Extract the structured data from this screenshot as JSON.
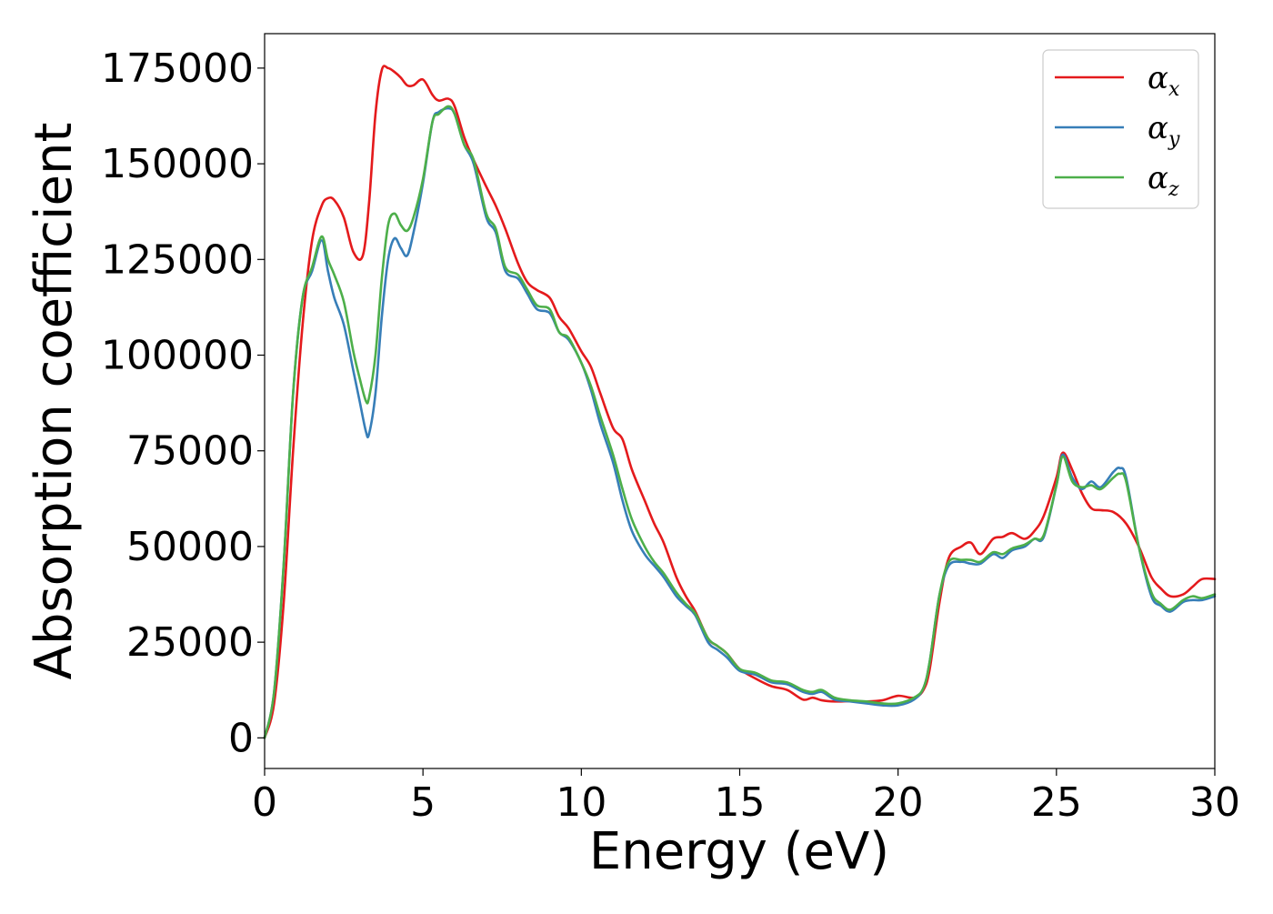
{
  "chart_data": {
    "type": "line",
    "xlabel": "Energy (eV)",
    "ylabel": "Absorption coefficient",
    "xlim": [
      0,
      30
    ],
    "ylim": [
      -8000,
      184000
    ],
    "xticks": [
      0,
      5,
      10,
      15,
      20,
      25,
      30
    ],
    "yticks": [
      0,
      25000,
      50000,
      75000,
      100000,
      125000,
      150000,
      175000
    ],
    "grid": false,
    "legend_position": "top-right",
    "series": [
      {
        "name": "α_x",
        "legend_base": "α",
        "legend_sub": "x",
        "color": "#e41a1c",
        "x": [
          0,
          0.3,
          0.6,
          0.9,
          1.2,
          1.5,
          1.8,
          2.0,
          2.2,
          2.5,
          2.8,
          3.1,
          3.3,
          3.5,
          3.7,
          3.9,
          4.1,
          4.3,
          4.5,
          4.7,
          5.0,
          5.3,
          5.5,
          5.8,
          6.0,
          6.3,
          6.6,
          7.0,
          7.3,
          7.6,
          8.0,
          8.3,
          8.6,
          9.0,
          9.3,
          9.6,
          10.0,
          10.3,
          10.6,
          11.0,
          11.3,
          11.6,
          12.0,
          12.3,
          12.6,
          13.0,
          13.3,
          13.6,
          14.0,
          14.3,
          14.6,
          15.0,
          15.5,
          16.0,
          16.5,
          17.0,
          17.3,
          17.6,
          18.0,
          18.5,
          19.0,
          19.5,
          20.0,
          20.5,
          20.8,
          21.0,
          21.3,
          21.6,
          22.0,
          22.3,
          22.6,
          23.0,
          23.3,
          23.6,
          24.0,
          24.3,
          24.6,
          25.0,
          25.2,
          25.5,
          25.8,
          26.1,
          26.4,
          26.8,
          27.2,
          27.6,
          28.0,
          28.3,
          28.6,
          29.0,
          29.3,
          29.6,
          30.0
        ],
        "y": [
          0,
          9000,
          35000,
          75000,
          108000,
          130000,
          139000,
          141000,
          140500,
          136000,
          127000,
          126000,
          140000,
          163000,
          174500,
          175000,
          174000,
          172500,
          170500,
          170500,
          172000,
          168000,
          166500,
          167000,
          165000,
          157000,
          151000,
          144000,
          139000,
          133000,
          124000,
          119000,
          117000,
          115000,
          110000,
          107000,
          101000,
          97000,
          90000,
          81000,
          78000,
          70000,
          62000,
          56000,
          51000,
          42000,
          37000,
          33000,
          26000,
          24000,
          22000,
          18000,
          15500,
          13500,
          12500,
          10000,
          10500,
          9800,
          9500,
          9600,
          9500,
          9800,
          11000,
          10500,
          12500,
          18000,
          35000,
          47000,
          50000,
          51000,
          48000,
          52000,
          52500,
          53500,
          52000,
          54000,
          58000,
          68000,
          74500,
          70000,
          64000,
          60000,
          59500,
          59000,
          56000,
          50000,
          42000,
          39000,
          37000,
          37500,
          39500,
          41500,
          41500
        ]
      },
      {
        "name": "α_y",
        "legend_base": "α",
        "legend_sub": "y",
        "color": "#377eb8",
        "x": [
          0,
          0.3,
          0.6,
          0.9,
          1.2,
          1.5,
          1.8,
          2.0,
          2.2,
          2.5,
          2.8,
          3.0,
          3.2,
          3.3,
          3.5,
          3.7,
          3.9,
          4.1,
          4.3,
          4.5,
          4.7,
          5.0,
          5.3,
          5.5,
          5.8,
          6.0,
          6.3,
          6.6,
          7.0,
          7.3,
          7.6,
          8.0,
          8.3,
          8.6,
          9.0,
          9.3,
          9.6,
          10.0,
          10.3,
          10.6,
          11.0,
          11.3,
          11.6,
          12.0,
          12.3,
          12.6,
          13.0,
          13.3,
          13.6,
          14.0,
          14.3,
          14.6,
          15.0,
          15.5,
          16.0,
          16.5,
          17.0,
          17.3,
          17.6,
          18.0,
          18.5,
          19.0,
          19.5,
          20.0,
          20.5,
          20.8,
          21.0,
          21.3,
          21.6,
          22.0,
          22.3,
          22.6,
          23.0,
          23.3,
          23.6,
          24.0,
          24.3,
          24.6,
          25.0,
          25.2,
          25.5,
          25.8,
          26.1,
          26.4,
          26.8,
          27.0,
          27.2,
          27.6,
          28.0,
          28.3,
          28.6,
          29.0,
          29.3,
          29.6,
          30.0
        ],
        "y": [
          0,
          12000,
          45000,
          90000,
          115000,
          122000,
          130000,
          122000,
          115000,
          108000,
          96000,
          88000,
          80000,
          79500,
          90000,
          110000,
          125000,
          130500,
          128000,
          126000,
          132000,
          145000,
          161000,
          163500,
          164500,
          163000,
          155000,
          150000,
          136000,
          132000,
          122000,
          120000,
          116000,
          112000,
          111000,
          106000,
          104000,
          98000,
          91000,
          82000,
          72000,
          62000,
          54000,
          48000,
          45000,
          42000,
          37000,
          34500,
          32000,
          25000,
          23000,
          21000,
          17500,
          16500,
          14500,
          14000,
          12000,
          11500,
          12000,
          10000,
          9500,
          9000,
          8500,
          8500,
          10000,
          13000,
          20000,
          37000,
          45000,
          46000,
          45500,
          45500,
          48000,
          47000,
          49000,
          50000,
          52000,
          52500,
          66000,
          74000,
          68000,
          65000,
          67000,
          65500,
          69500,
          70500,
          68000,
          50000,
          37000,
          34500,
          33000,
          35500,
          36000,
          36000,
          37000
        ]
      },
      {
        "name": "α_z",
        "legend_base": "α",
        "legend_sub": "z",
        "color": "#4daf4a",
        "x": [
          0,
          0.3,
          0.6,
          0.9,
          1.2,
          1.5,
          1.8,
          2.0,
          2.2,
          2.5,
          2.8,
          3.0,
          3.2,
          3.3,
          3.5,
          3.7,
          3.9,
          4.1,
          4.3,
          4.5,
          4.7,
          5.0,
          5.3,
          5.5,
          5.8,
          6.0,
          6.3,
          6.6,
          7.0,
          7.3,
          7.6,
          8.0,
          8.3,
          8.6,
          9.0,
          9.3,
          9.6,
          10.0,
          10.3,
          10.6,
          11.0,
          11.3,
          11.6,
          12.0,
          12.3,
          12.6,
          13.0,
          13.3,
          13.6,
          14.0,
          14.3,
          14.6,
          15.0,
          15.5,
          16.0,
          16.5,
          17.0,
          17.3,
          17.6,
          18.0,
          18.5,
          19.0,
          19.5,
          20.0,
          20.5,
          20.8,
          21.0,
          21.3,
          21.6,
          22.0,
          22.3,
          22.6,
          23.0,
          23.3,
          23.6,
          24.0,
          24.3,
          24.6,
          25.0,
          25.2,
          25.5,
          25.8,
          26.1,
          26.4,
          26.8,
          27.0,
          27.2,
          27.6,
          28.0,
          28.3,
          28.6,
          29.0,
          29.3,
          29.6,
          30.0
        ],
        "y": [
          0,
          12000,
          45000,
          90000,
          115000,
          123000,
          131000,
          125000,
          121000,
          114000,
          101000,
          94000,
          88000,
          89000,
          100000,
          120000,
          134000,
          137000,
          134000,
          132500,
          136000,
          146000,
          161000,
          163000,
          165000,
          163000,
          155000,
          151000,
          137000,
          133000,
          123000,
          121000,
          117000,
          113000,
          112000,
          106000,
          104500,
          98000,
          92000,
          84000,
          74000,
          65000,
          57000,
          50000,
          46000,
          43000,
          38000,
          35000,
          32500,
          26000,
          24000,
          22000,
          18000,
          17000,
          15000,
          14500,
          12500,
          12000,
          12500,
          10500,
          9800,
          9500,
          9000,
          9000,
          10500,
          13000,
          20000,
          37000,
          46000,
          46500,
          46500,
          46000,
          48500,
          48000,
          49500,
          50500,
          52000,
          53000,
          66000,
          73500,
          67000,
          65500,
          66000,
          65000,
          68000,
          69000,
          67000,
          50000,
          38000,
          35000,
          33500,
          36000,
          37000,
          36500,
          37500
        ]
      }
    ]
  }
}
